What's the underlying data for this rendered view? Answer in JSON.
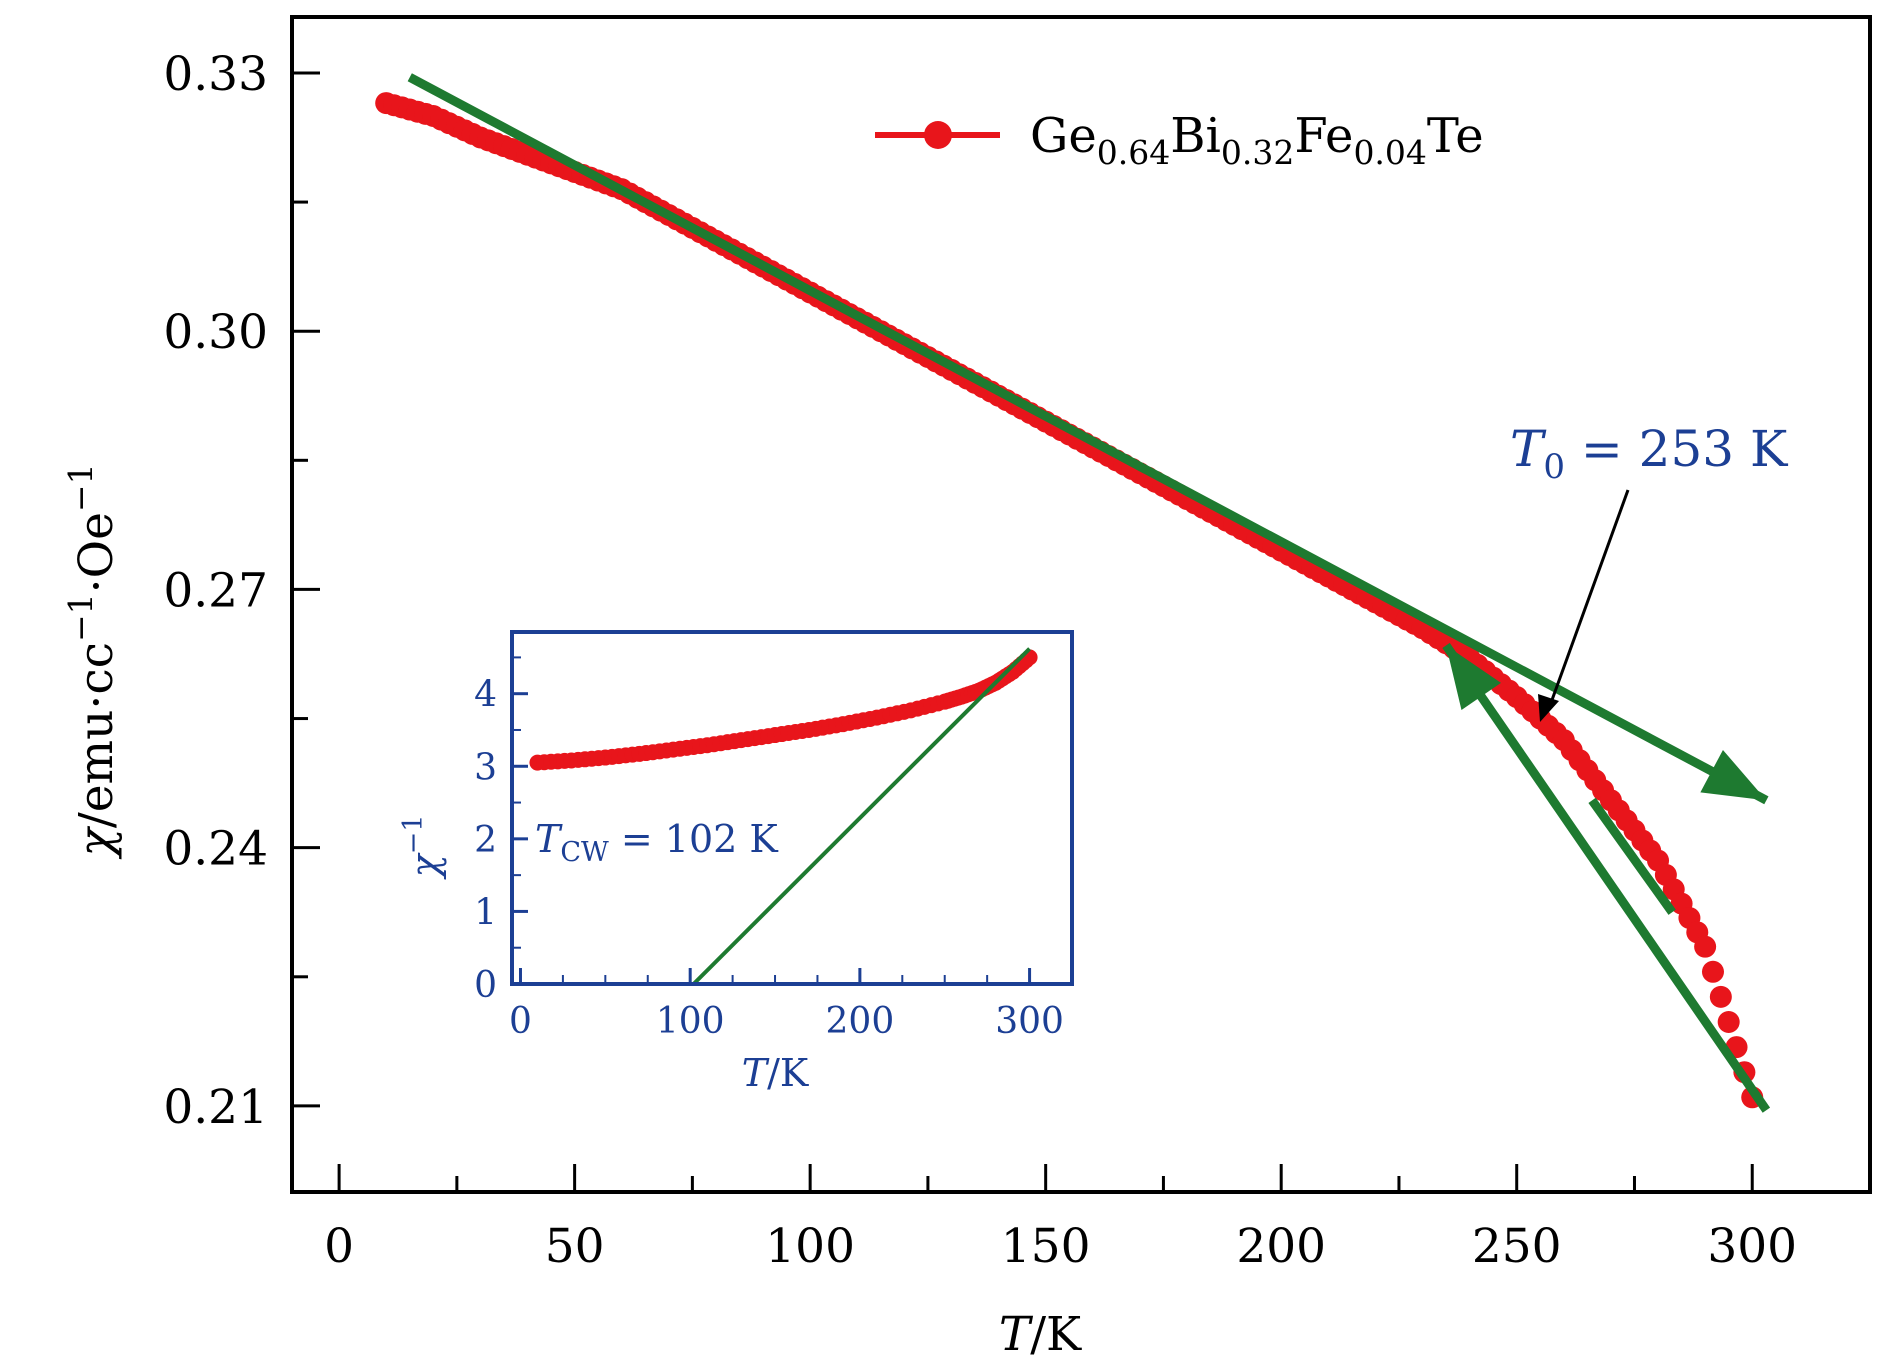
{
  "chart_data": [
    {
      "type": "scatter",
      "xlabel": {
        "italic": "T",
        "rest": "/K"
      },
      "ylabel": {
        "sym": "χ",
        "rest": "/emu·cc",
        "sup1": "−1",
        "mid": "·Oe",
        "sup2": "−1"
      },
      "xlim": [
        -10,
        325
      ],
      "ylim": [
        0.2,
        0.3365
      ],
      "x_ticks": [
        0,
        50,
        100,
        150,
        200,
        250,
        300
      ],
      "x_tick_labels": [
        "0",
        "50",
        "100",
        "150",
        "200",
        "250",
        "300"
      ],
      "y_ticks": [
        0.21,
        0.24,
        0.27,
        0.3,
        0.33
      ],
      "y_tick_labels": [
        "0.21",
        "0.24",
        "0.27",
        "0.30",
        "0.33"
      ],
      "legend": {
        "placement": "top-right",
        "label": {
          "a": "Ge",
          "a_sub": "0.64",
          "b": "Bi",
          "b_sub": "0.32",
          "c": "Fe",
          "c_sub": "0.04",
          "d": "Te"
        }
      },
      "series": [
        {
          "name": "Ge0.64Bi0.32Fe0.04Te",
          "color": "#e8151b",
          "marker": "circle",
          "x": [
            10,
            20,
            30,
            40,
            50,
            60,
            70,
            80,
            90,
            100,
            110,
            120,
            130,
            140,
            150,
            160,
            170,
            180,
            190,
            200,
            210,
            220,
            230,
            240,
            250,
            260,
            270,
            280,
            290,
            300
          ],
          "y": [
            0.3265,
            0.325,
            0.3225,
            0.3205,
            0.3185,
            0.3165,
            0.3135,
            0.3105,
            0.3075,
            0.3045,
            0.3015,
            0.2985,
            0.2955,
            0.2925,
            0.2895,
            0.2865,
            0.2835,
            0.2805,
            0.2775,
            0.2745,
            0.2715,
            0.2685,
            0.2655,
            0.262,
            0.2575,
            0.2525,
            0.2455,
            0.2385,
            0.2285,
            0.211
          ]
        }
      ],
      "fit_lines": [
        {
          "color": "#1e7a30",
          "x": [
            15,
            303
          ],
          "y": [
            0.3295,
            0.2455
          ],
          "arrow": true
        },
        {
          "color": "#1e7a30",
          "x": [
            235,
            303
          ],
          "y": [
            0.2635,
            0.2095
          ],
          "arrow_at_start": true
        },
        {
          "color": "#1e7a30",
          "x": [
            266,
            283
          ],
          "y": [
            0.2455,
            0.2325
          ],
          "arrow": false
        }
      ],
      "annotations": [
        {
          "text": {
            "sym": "T",
            "sub": "0",
            "rest": " = 253 K"
          },
          "color": "#1c3f94",
          "arrow_to": [
            254,
            0.2565
          ]
        }
      ]
    },
    {
      "type": "scatter",
      "inset": true,
      "frame_color": "#1c3f94",
      "xlabel": {
        "italic": "T",
        "rest": "/K"
      },
      "ylabel": {
        "sym": "χ",
        "sup": "−1"
      },
      "xlim": [
        -5,
        325
      ],
      "ylim": [
        0,
        4.85
      ],
      "x_ticks": [
        0,
        100,
        200,
        300
      ],
      "x_tick_labels": [
        "0",
        "100",
        "200",
        "300"
      ],
      "y_ticks": [
        0,
        1,
        2,
        3,
        4
      ],
      "y_tick_labels": [
        "0",
        "1",
        "2",
        "3",
        "4"
      ],
      "series": [
        {
          "color": "#e8151b",
          "marker": "circle",
          "x": [
            10,
            30,
            50,
            70,
            90,
            110,
            130,
            150,
            170,
            190,
            210,
            230,
            250,
            260,
            270,
            280,
            290,
            300
          ],
          "y": [
            3.05,
            3.08,
            3.12,
            3.17,
            3.23,
            3.29,
            3.36,
            3.43,
            3.5,
            3.58,
            3.67,
            3.77,
            3.89,
            3.96,
            4.04,
            4.15,
            4.3,
            4.5
          ]
        }
      ],
      "fit_line": {
        "color": "#1e7a30",
        "x": [
          102,
          300
        ],
        "y": [
          0,
          4.62
        ]
      },
      "annotation": {
        "sym": "T",
        "sub": "CW",
        "rest": " = 102 K"
      }
    }
  ]
}
